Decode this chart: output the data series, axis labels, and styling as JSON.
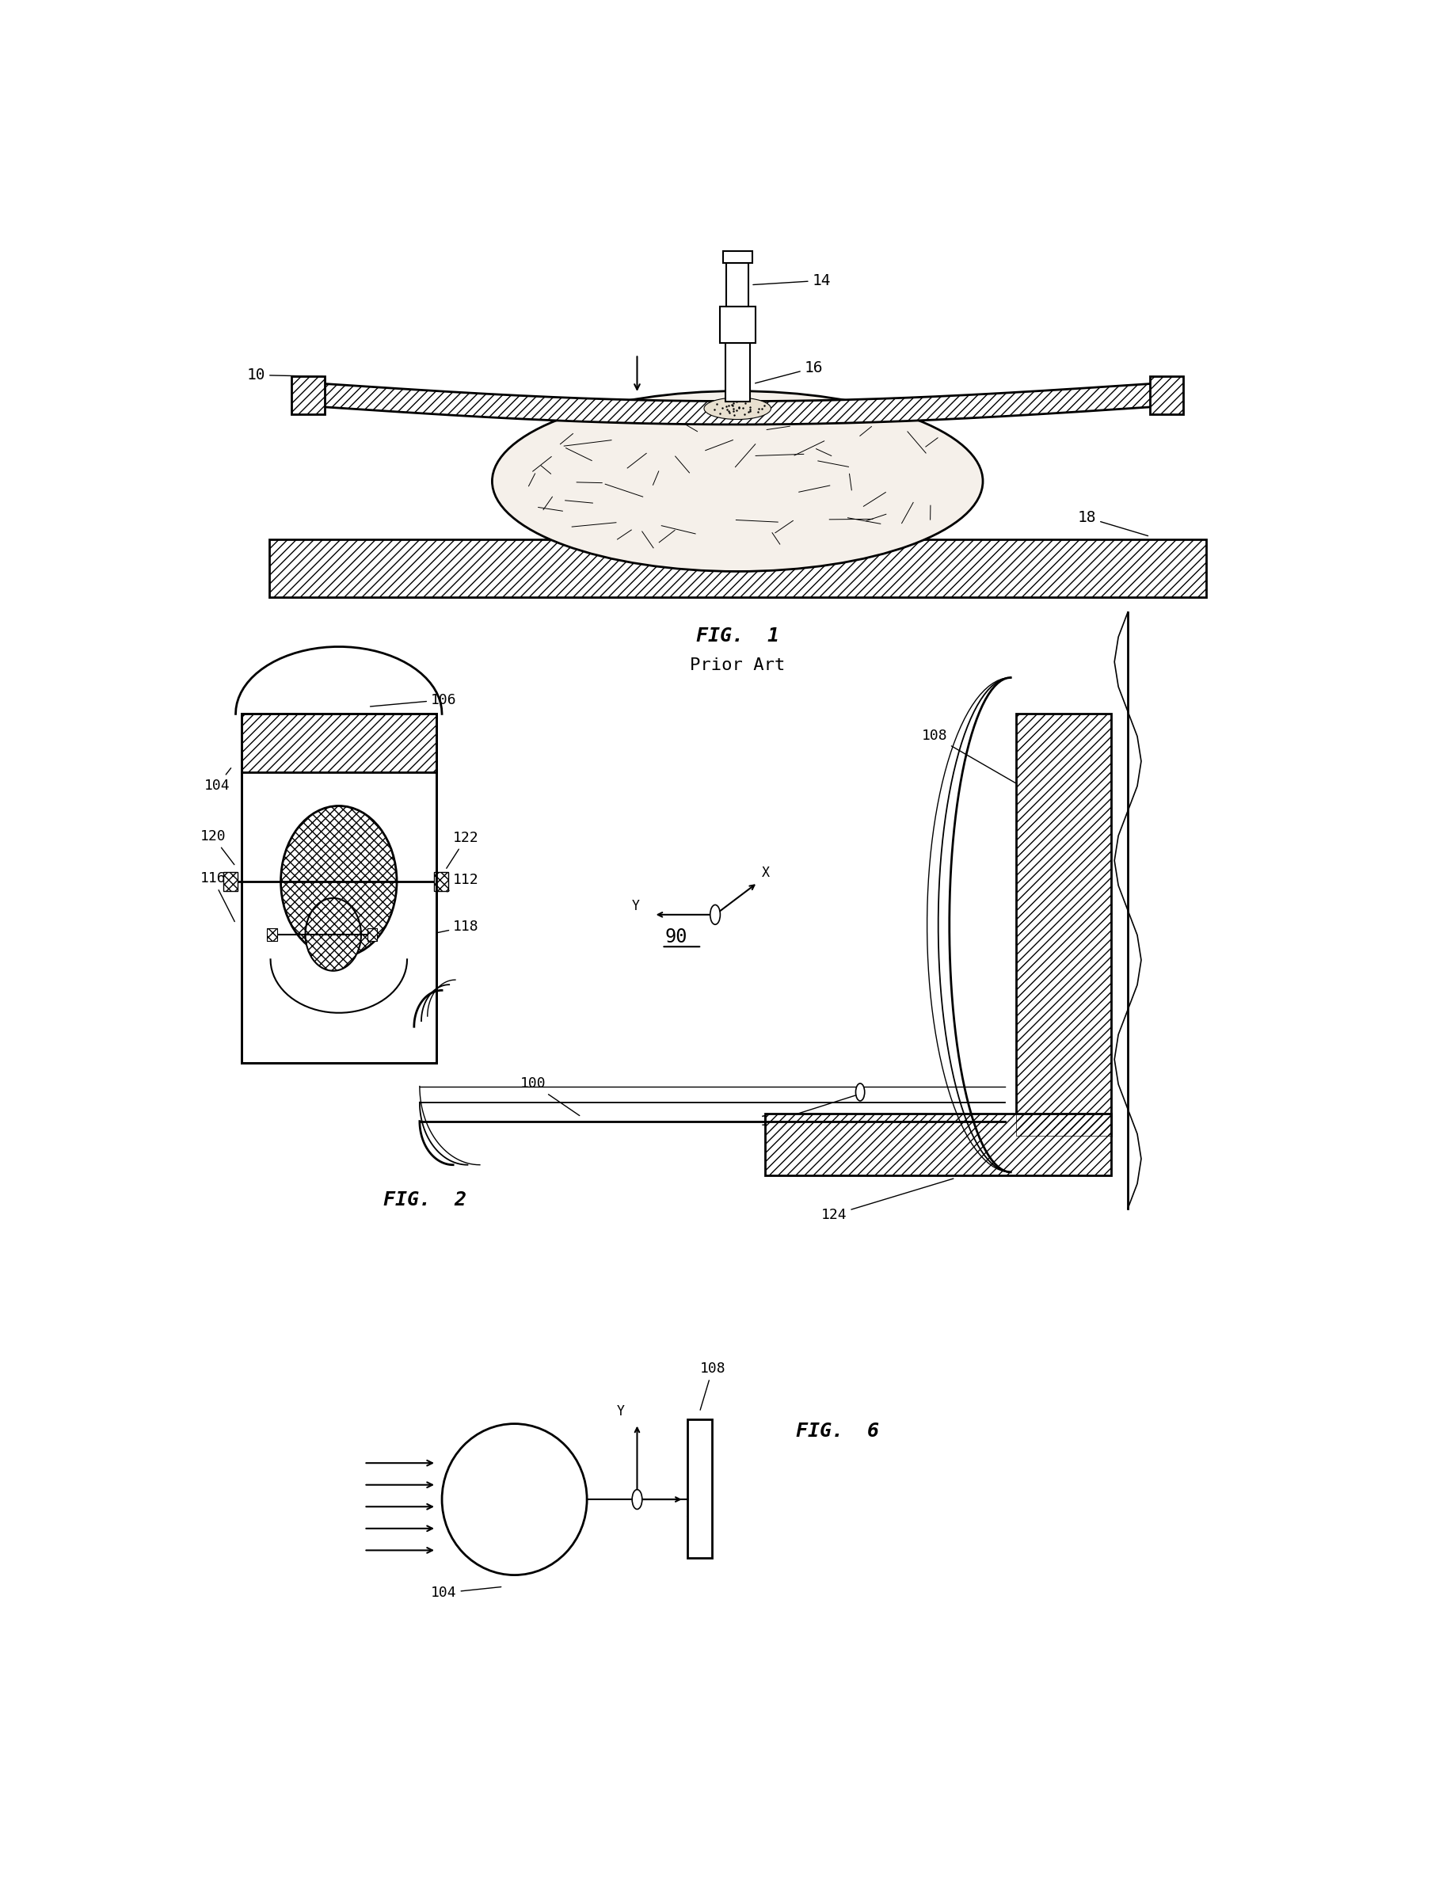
{
  "fig_width": 18.17,
  "fig_height": 23.85,
  "background_color": "#ffffff",
  "fig1_title": "FIG.  1",
  "fig1_subtitle": "Prior Art",
  "fig2_title": "FIG.  2",
  "fig6_title": "FIG.  6"
}
